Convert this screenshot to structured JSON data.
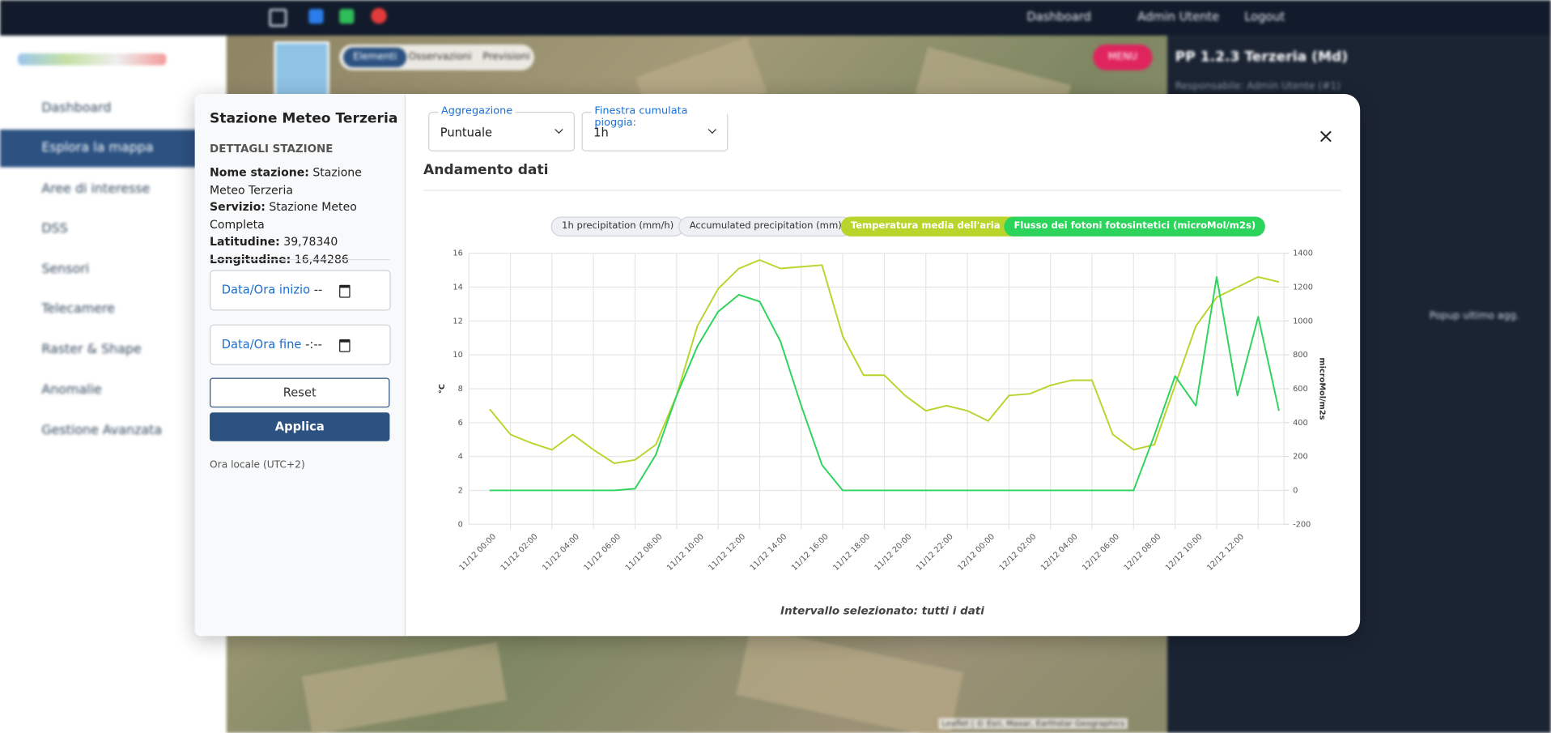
{
  "topbar": {
    "links": [
      "Dashboard",
      "Admin Utente",
      "Logout"
    ]
  },
  "sidebar": {
    "items": [
      "Dashboard",
      "Esplora la mappa",
      "Aree di interesse",
      "DSS",
      "Sensori",
      "Telecamere",
      "Raster & Shape",
      "Anomalie",
      "Gestione Avanzata"
    ]
  },
  "map": {
    "tabs": [
      "Elementi",
      "Osservazioni",
      "Previsioni"
    ],
    "menu": "MENU",
    "attribution": "Leaflet | © Esri, Maxar, Earthstar Geographics"
  },
  "right_panel": {
    "title": "PP 1.2.3 Terzeria (Md)",
    "subtitle": "Responsabile: Admin Utente (#1)",
    "toggle": "Popup ultimo agg."
  },
  "station": {
    "title": "Stazione Meteo Terzeria",
    "section": "DETTAGLI STAZIONE",
    "fields": [
      {
        "label": "Nome stazione:",
        "value": "Stazione Meteo Terzeria"
      },
      {
        "label": "Servizio:",
        "value": "Stazione Meteo Completa"
      },
      {
        "label": "Latitudine:",
        "value": "39,78340"
      },
      {
        "label": "Longitudine:",
        "value": "16,44286"
      }
    ],
    "start_label": "Data/Ora inizio",
    "start_placeholder": "--",
    "end_label": "Data/Ora fine",
    "end_placeholder": "-:--",
    "reset": "Reset",
    "apply": "Applica",
    "timezone": "Ora locale (UTC+2)"
  },
  "controls": {
    "aggregation_label": "Aggregazione",
    "aggregation_value": "Puntuale",
    "window_label": "Finestra cumulata pioggia:",
    "window_value": "1h",
    "section_title": "Andamento dati",
    "footer": "Intervallo selezionato: tutti i dati"
  },
  "chart_data": {
    "type": "line",
    "hidden_series": [
      "1h precipitation (mm/h)",
      "Accumulated precipitation (mm)"
    ],
    "categories": [
      null,
      "11/12 00:00",
      null,
      "11/12 02:00",
      null,
      "11/12 04:00",
      null,
      "11/12 06:00",
      null,
      "11/12 08:00",
      null,
      "11/12 10:00",
      null,
      "11/12 12:00",
      null,
      "11/12 14:00",
      null,
      "11/12 16:00",
      null,
      "11/12 18:00",
      null,
      "11/12 20:00",
      null,
      "11/12 22:00",
      null,
      "12/12 00:00",
      null,
      "12/12 02:00",
      null,
      "12/12 04:00",
      null,
      "12/12 06:00",
      null,
      "12/12 08:00",
      null,
      "12/12 10:00",
      null,
      "12/12 12:00",
      null
    ],
    "series": [
      {
        "name": "Temperatura media dell'aria (°C)",
        "color": "#b9d52c",
        "axis": "y",
        "values": [
          6.8,
          5.3,
          4.8,
          4.4,
          5.3,
          4.4,
          3.6,
          3.8,
          4.7,
          7.6,
          11.7,
          13.9,
          15.1,
          15.6,
          15.1,
          15.2,
          15.3,
          11.1,
          8.8,
          8.8,
          7.6,
          6.7,
          7.0,
          6.7,
          6.1,
          7.6,
          7.7,
          8.2,
          8.5,
          8.5,
          5.3,
          4.4,
          4.7,
          8.2,
          11.7,
          13.4,
          14.0,
          14.6,
          14.3
        ]
      },
      {
        "name": "Flusso dei fotoni fotosintetici (microMol/m2s)",
        "color": "#2dd45b",
        "axis": "y2",
        "values": [
          0,
          0,
          0,
          0,
          0,
          0,
          0,
          10,
          210,
          560,
          850,
          1055,
          1155,
          1115,
          880,
          500,
          150,
          0,
          0,
          0,
          0,
          0,
          0,
          0,
          0,
          0,
          0,
          0,
          0,
          0,
          0,
          0,
          325,
          675,
          500,
          1260,
          560,
          1025,
          470
        ]
      }
    ],
    "ylabel": "°C",
    "y2label": "microMol/m2s",
    "ylim": [
      0,
      16
    ],
    "yticks": [
      0,
      2,
      4,
      6,
      8,
      10,
      12,
      14,
      16
    ],
    "y2lim": [
      -200,
      1400
    ],
    "y2ticks": [
      -200,
      0,
      200,
      400,
      600,
      800,
      1000,
      1200,
      1400
    ],
    "grid": true
  }
}
